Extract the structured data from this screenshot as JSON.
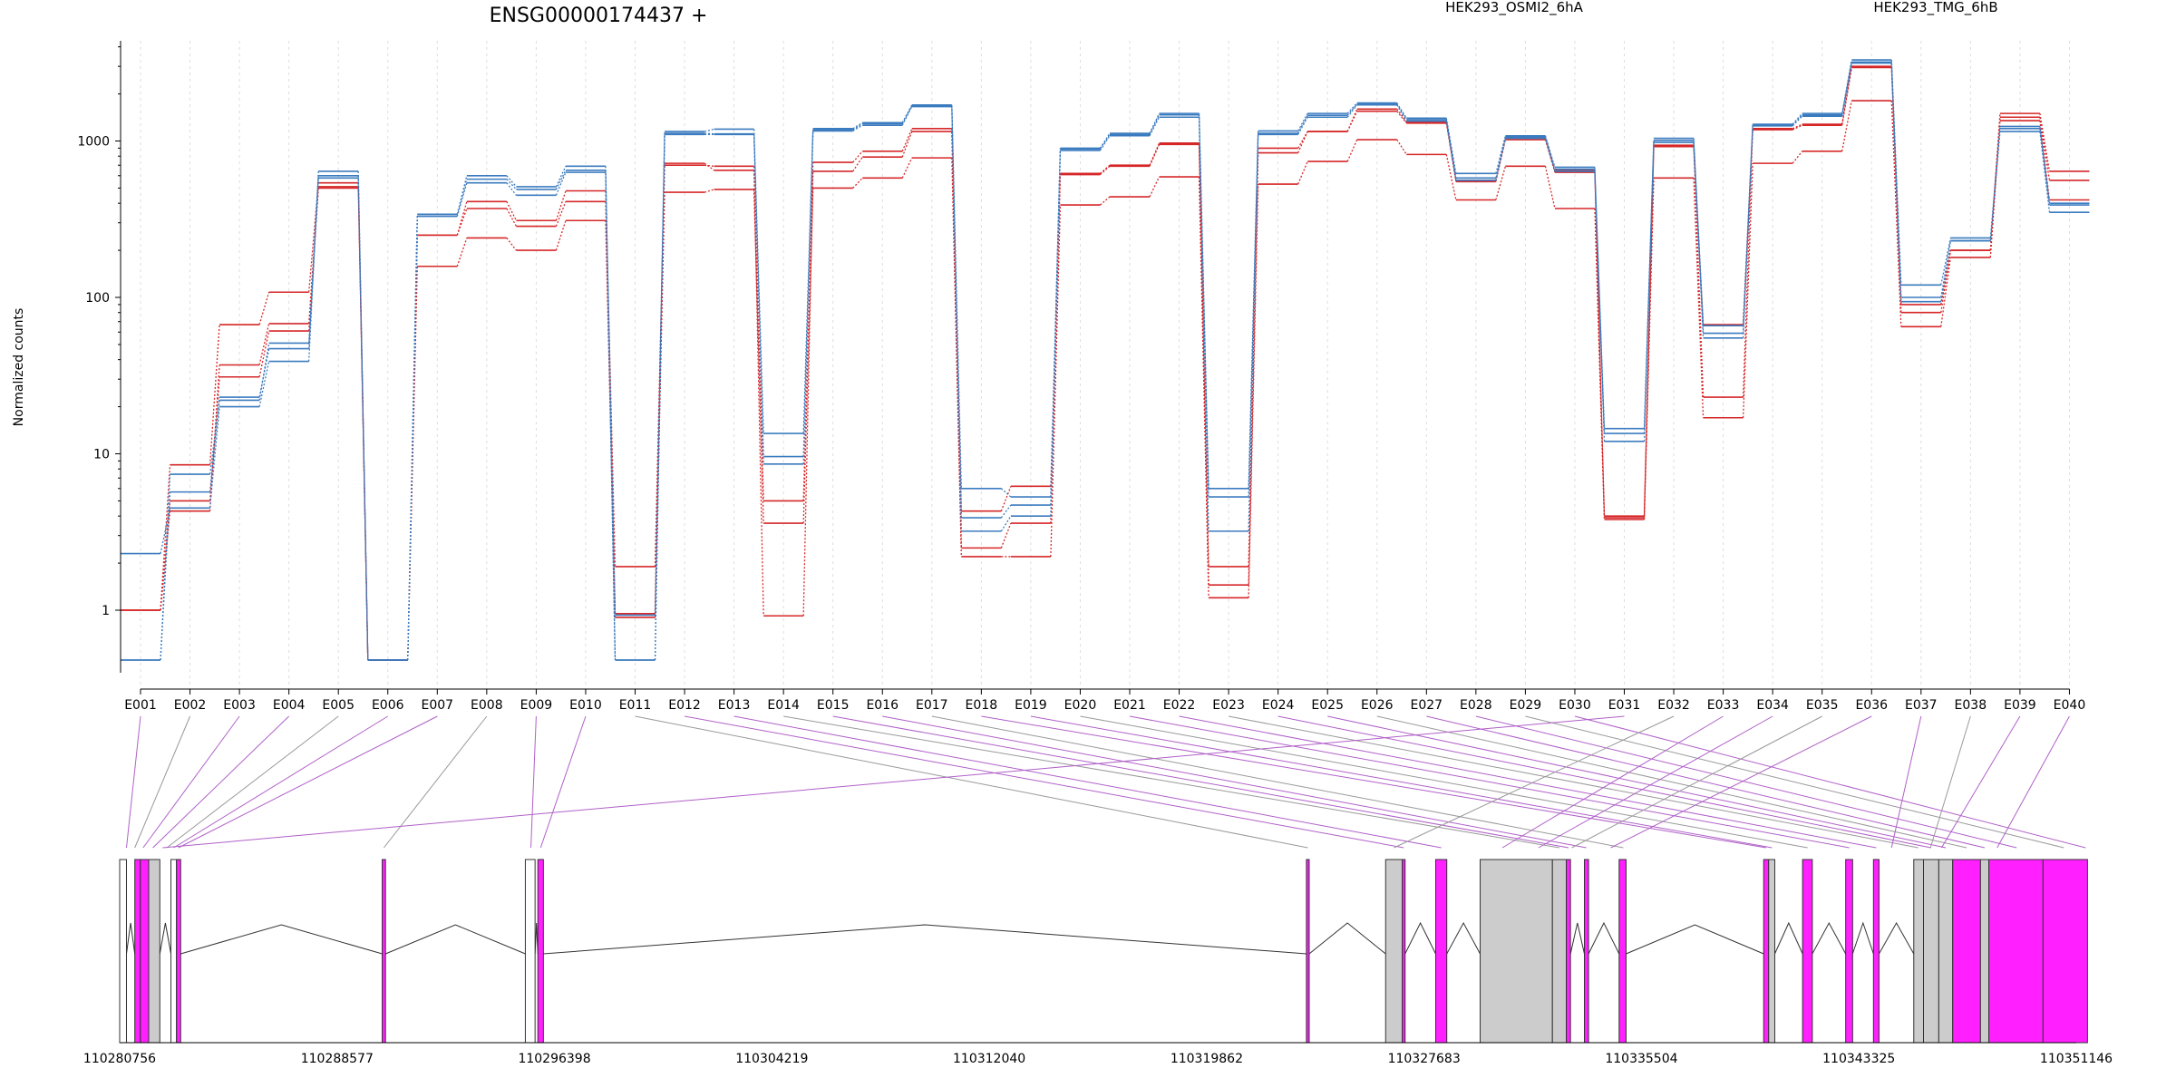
{
  "chart_data": {
    "type": "line",
    "title": "ENSG00000174437 +",
    "ylabel": "Normalized counts",
    "xlabel": "",
    "y_scale": "log",
    "ylim": [
      0.5,
      4000
    ],
    "y_ticks": [
      1,
      10,
      100,
      1000
    ],
    "y_tick_labels": [
      "1",
      "10",
      "100",
      "1000"
    ],
    "categories": [
      "E001",
      "E002",
      "E003",
      "E004",
      "E005",
      "E006",
      "E007",
      "E008",
      "E009",
      "E010",
      "E011",
      "E012",
      "E013",
      "E014",
      "E015",
      "E016",
      "E017",
      "E018",
      "E019",
      "E020",
      "E021",
      "E022",
      "E023",
      "E024",
      "E025",
      "E026",
      "E027",
      "E028",
      "E029",
      "E030",
      "E031",
      "E032",
      "E033",
      "E034",
      "E035",
      "E036",
      "E037",
      "E038",
      "E039",
      "E040"
    ],
    "groups": [
      {
        "name": "HEK293_OSMI2_6hA",
        "color": "#d62728"
      },
      {
        "name": "HEK293_TMG_6hB",
        "color": "#3b7bbf"
      }
    ],
    "series": [
      {
        "group": 0,
        "values": [
          1,
          8.5,
          67,
          108,
          540,
          0.48,
          250,
          410,
          310,
          480,
          1.9,
          720,
          650,
          5,
          730,
          860,
          1200,
          4.3,
          6.2,
          620,
          700,
          970,
          1.9,
          900,
          1150,
          1600,
          1320,
          560,
          1050,
          650,
          4,
          940,
          23,
          1200,
          1280,
          3000,
          90,
          200,
          1500,
          640
        ]
      },
      {
        "group": 0,
        "values": [
          1,
          4.3,
          37,
          68,
          510,
          0.48,
          250,
          370,
          285,
          410,
          0.95,
          700,
          690,
          0.92,
          640,
          790,
          1150,
          2.5,
          3.6,
          610,
          690,
          950,
          1.45,
          840,
          1150,
          1550,
          1300,
          550,
          1020,
          630,
          3.9,
          920,
          67,
          1180,
          1260,
          2950,
          80,
          200,
          1420,
          560
        ]
      },
      {
        "group": 0,
        "values": [
          1,
          5,
          31,
          61,
          500,
          0.48,
          158,
          240,
          200,
          310,
          0.9,
          470,
          490,
          3.6,
          500,
          580,
          780,
          2.2,
          2.2,
          390,
          440,
          590,
          1.2,
          530,
          740,
          1020,
          820,
          420,
          690,
          370,
          3.8,
          580,
          17,
          720,
          860,
          1810,
          65,
          180,
          1350,
          420
        ]
      },
      {
        "group": 1,
        "values": [
          2.3,
          4.5,
          20,
          39,
          640,
          0.48,
          340,
          600,
          510,
          690,
          0.48,
          1150,
          1190,
          13.5,
          1200,
          1310,
          1700,
          6,
          5.3,
          900,
          1120,
          1500,
          6,
          1160,
          1500,
          1750,
          1400,
          620,
          1080,
          680,
          14.5,
          1040,
          66,
          1280,
          1500,
          3300,
          120,
          240,
          1240,
          400
        ]
      },
      {
        "group": 1,
        "values": [
          0.48,
          5.7,
          23,
          47,
          600,
          0.48,
          340,
          570,
          490,
          650,
          0.93,
          1120,
          1110,
          9.6,
          1180,
          1290,
          1680,
          3.9,
          4.7,
          890,
          1100,
          1470,
          5.3,
          1120,
          1460,
          1720,
          1370,
          580,
          1060,
          660,
          13.5,
          1010,
          59,
          1260,
          1470,
          3200,
          100,
          230,
          1200,
          390
        ]
      },
      {
        "group": 1,
        "values": [
          0.48,
          7.4,
          22,
          51,
          580,
          0.48,
          330,
          540,
          450,
          630,
          0.48,
          1100,
          1100,
          8.6,
          1160,
          1260,
          1660,
          3.2,
          4,
          870,
          1080,
          1420,
          3.2,
          1100,
          1420,
          1700,
          1340,
          560,
          1040,
          640,
          12,
          980,
          55,
          1250,
          1440,
          3150,
          94,
          230,
          1150,
          350
        ]
      }
    ],
    "gene_model": {
      "ticks": [
        "110280756",
        "110288577",
        "110296398",
        "110304219",
        "110312040",
        "110319862",
        "110327683",
        "110335504",
        "110343325",
        "110351146"
      ],
      "exons": [
        {
          "start": 110280756,
          "end": 110281000,
          "fill": "#ffffff"
        },
        {
          "start": 110281300,
          "end": 110281500,
          "fill": "#ff1fff"
        },
        {
          "start": 110281500,
          "end": 110281800,
          "fill": "#ff1fff"
        },
        {
          "start": 110281800,
          "end": 110282200,
          "fill": "#cccccc"
        },
        {
          "start": 110282600,
          "end": 110282800,
          "fill": "#ffffff"
        },
        {
          "start": 110282800,
          "end": 110282950,
          "fill": "#ff1fff"
        },
        {
          "start": 110290200,
          "end": 110290320,
          "fill": "#ff1fff"
        },
        {
          "start": 110295350,
          "end": 110295700,
          "fill": "#ffffff"
        },
        {
          "start": 110295800,
          "end": 110296000,
          "fill": "#ff1fff"
        },
        {
          "start": 110323450,
          "end": 110323550,
          "fill": "#ff1fff"
        },
        {
          "start": 110326300,
          "end": 110326900,
          "fill": "#cccccc"
        },
        {
          "start": 110326900,
          "end": 110327000,
          "fill": "#ff1fff"
        },
        {
          "start": 110328100,
          "end": 110328500,
          "fill": "#ff1fff"
        },
        {
          "start": 110329700,
          "end": 110332300,
          "fill": "#cccccc"
        },
        {
          "start": 110332300,
          "end": 110332800,
          "fill": "#cccccc"
        },
        {
          "start": 110332800,
          "end": 110332950,
          "fill": "#ff1fff"
        },
        {
          "start": 110333450,
          "end": 110333600,
          "fill": "#ff1fff"
        },
        {
          "start": 110334700,
          "end": 110334950,
          "fill": "#ff1fff"
        },
        {
          "start": 110339900,
          "end": 110340080,
          "fill": "#ff1fff"
        },
        {
          "start": 110340080,
          "end": 110340300,
          "fill": "#cccccc"
        },
        {
          "start": 110341300,
          "end": 110341650,
          "fill": "#ff1fff"
        },
        {
          "start": 110342850,
          "end": 110343100,
          "fill": "#ff1fff"
        },
        {
          "start": 110343850,
          "end": 110344050,
          "fill": "#ff1fff"
        },
        {
          "start": 110345300,
          "end": 110345650,
          "fill": "#cccccc"
        },
        {
          "start": 110345650,
          "end": 110346200,
          "fill": "#cccccc"
        },
        {
          "start": 110346200,
          "end": 110346700,
          "fill": "#cccccc"
        },
        {
          "start": 110346700,
          "end": 110347700,
          "fill": "#ff1fff"
        },
        {
          "start": 110347700,
          "end": 110348000,
          "fill": "#cccccc"
        },
        {
          "start": 110348000,
          "end": 110349950,
          "fill": "#ff1fff"
        },
        {
          "start": 110349950,
          "end": 110351550,
          "fill": "#ff1fff"
        }
      ],
      "links": [
        110281000,
        110281300,
        110281600,
        110281950,
        110282450,
        110282700,
        110282870,
        110290260,
        110295550,
        110295900,
        110323500,
        110326950,
        110328300,
        110332550,
        110332880,
        110333520,
        110334850,
        110339990,
        110340200,
        110341480,
        110342980,
        110343950,
        110345460,
        110345920,
        110346450,
        110347200,
        110347850,
        110349000,
        110350700,
        110351480,
        110282300,
        110326600,
        110330500,
        110331800,
        110333000,
        110334400,
        110344500,
        110345900,
        110346300,
        110348300
      ]
    }
  }
}
